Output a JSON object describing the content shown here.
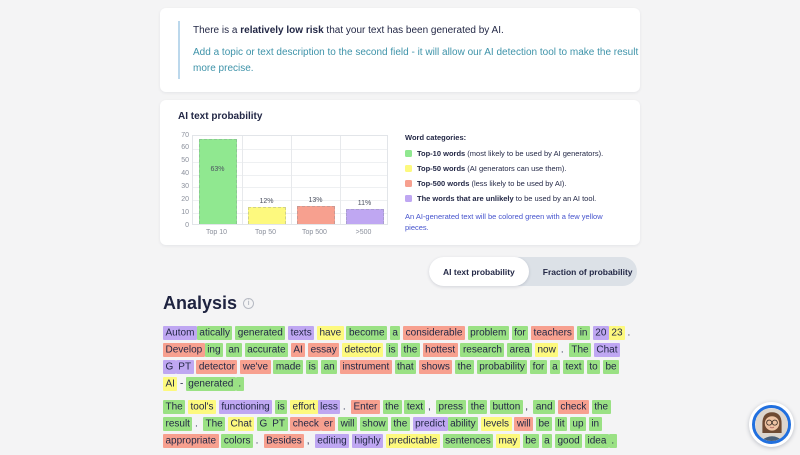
{
  "palette": {
    "green": "#9ae184",
    "yellow": "#fdf97e",
    "red": "#f7a08f",
    "purple": "#bfa7f2",
    "navy": "#232846",
    "teal": "#3e93a9",
    "indigo": "#4553cd"
  },
  "risk_card": {
    "line1_prefix": "There is a ",
    "line1_bold": "relatively low risk",
    "line1_suffix": " that your text has been generated by AI.",
    "line2": "Add a topic or text description to the second field - it will allow our AI detection tool to make the result more precise."
  },
  "chart_card": {
    "title": "AI text probability",
    "legend_heading": "Word categories:",
    "legend_items": [
      {
        "color": "#90e890",
        "bold": "Top-10 words",
        "rest": " (most likely to be used by AI generators)."
      },
      {
        "color": "#fdf97e",
        "bold": "Top-50 words",
        "rest": " (AI generators can use them)."
      },
      {
        "color": "#f7a08f",
        "bold": "Top-500 words",
        "rest": " (less likely to be used by AI)."
      },
      {
        "color": "#bfa7f2",
        "bold": "The words that are unlikely",
        "rest": " to be used by an AI tool."
      }
    ],
    "legend_note": "An AI-generated text will be colored green with a few yellow pieces."
  },
  "chart_data": {
    "type": "bar",
    "title": "AI text probability",
    "categories": [
      "Top 10",
      "Top 50",
      "Top 500",
      ">500"
    ],
    "values": [
      63,
      12,
      13,
      11
    ],
    "bar_labels": [
      "63%",
      "12%",
      "13%",
      "11%"
    ],
    "bar_heights_axis": [
      66,
      13,
      14,
      12
    ],
    "bar_colors": [
      "#90e890",
      "#fdf97e",
      "#f7a08f",
      "#bfa7f2"
    ],
    "ylim": [
      0,
      70
    ],
    "yticks": [
      0,
      10,
      20,
      30,
      40,
      50,
      60,
      70
    ],
    "grid": true,
    "legend_position": "right",
    "xlabel": "",
    "ylabel": ""
  },
  "toggle": {
    "active_label": "AI text probability",
    "inactive_label": "Fraction of probability"
  },
  "analysis": {
    "heading": "Analysis",
    "info_icon": "i",
    "paragraphs": [
      [
        [
          [
            "Autom",
            "p"
          ],
          [
            "atically",
            "g"
          ]
        ],
        [
          [
            "generated",
            "g"
          ]
        ],
        [
          [
            "texts",
            "p"
          ]
        ],
        [
          [
            "have",
            "y"
          ]
        ],
        [
          [
            "become",
            "g"
          ]
        ],
        [
          [
            "a",
            "g"
          ]
        ],
        [
          [
            "considerable",
            "r"
          ]
        ],
        [
          [
            "problem",
            "g"
          ]
        ],
        [
          [
            "for",
            "g"
          ]
        ],
        [
          [
            "teachers",
            "r"
          ]
        ],
        [
          [
            "in",
            "g"
          ]
        ],
        [
          [
            "20",
            "p"
          ],
          [
            "23",
            "y"
          ],
          [
            ".",
            "n"
          ]
        ],
        [
          [
            "Develop",
            "r"
          ],
          [
            "ing",
            "g"
          ]
        ],
        [
          [
            "an",
            "g"
          ]
        ],
        [
          [
            "accurate",
            "g"
          ]
        ],
        [
          [
            "AI",
            "r"
          ]
        ],
        [
          [
            "essay",
            "r"
          ]
        ],
        [
          [
            "detector",
            "y"
          ]
        ],
        [
          [
            "is",
            "g"
          ]
        ],
        [
          [
            "the",
            "g"
          ]
        ],
        [
          [
            "hottest",
            "r"
          ]
        ],
        [
          [
            "research",
            "g"
          ]
        ],
        [
          [
            "area",
            "g"
          ]
        ],
        [
          [
            "now",
            "y"
          ],
          [
            ".",
            "n"
          ]
        ],
        [
          [
            "The",
            "g"
          ]
        ],
        [
          [
            "Chat",
            "p"
          ]
        ],
        [
          [
            "G",
            "p"
          ],
          [
            "PT",
            "p"
          ]
        ],
        [
          [
            "detector",
            "r"
          ]
        ],
        [
          [
            "we've",
            "r"
          ]
        ],
        [
          [
            "made",
            "g"
          ]
        ],
        [
          [
            "is",
            "g"
          ]
        ],
        [
          [
            "an",
            "g"
          ]
        ],
        [
          [
            "instrument",
            "r"
          ]
        ],
        [
          [
            "that",
            "g"
          ]
        ],
        [
          [
            "shows",
            "r"
          ]
        ],
        [
          [
            "the",
            "g"
          ]
        ],
        [
          [
            "probability",
            "g"
          ]
        ],
        [
          [
            "for",
            "g"
          ]
        ],
        [
          [
            "a",
            "g"
          ]
        ],
        [
          [
            "text",
            "g"
          ]
        ],
        [
          [
            "to",
            "g"
          ]
        ],
        [
          [
            "be",
            "g"
          ]
        ],
        [
          [
            "AI",
            "y"
          ],
          [
            "-",
            "n"
          ],
          [
            "generated",
            "g"
          ],
          [
            ".",
            "g"
          ]
        ]
      ],
      [
        [
          [
            "The",
            "g"
          ]
        ],
        [
          [
            "tool's",
            "y"
          ]
        ],
        [
          [
            "functioning",
            "p"
          ]
        ],
        [
          [
            "is",
            "g"
          ]
        ],
        [
          [
            "effort",
            "y"
          ],
          [
            "less",
            "p"
          ],
          [
            ".",
            "n"
          ]
        ],
        [
          [
            "Enter",
            "r"
          ]
        ],
        [
          [
            "the",
            "g"
          ]
        ],
        [
          [
            "text",
            "g"
          ],
          [
            ",",
            "n"
          ]
        ],
        [
          [
            "press",
            "g"
          ]
        ],
        [
          [
            "the",
            "g"
          ]
        ],
        [
          [
            "button",
            "g"
          ],
          [
            ",",
            "n"
          ]
        ],
        [
          [
            "and",
            "g"
          ]
        ],
        [
          [
            "check",
            "r"
          ]
        ],
        [
          [
            "the",
            "g"
          ]
        ],
        [
          [
            "result",
            "g"
          ],
          [
            ".",
            "n"
          ]
        ],
        [
          [
            "The",
            "g"
          ]
        ],
        [
          [
            "Chat",
            "y"
          ]
        ],
        [
          [
            "G",
            "g"
          ],
          [
            "PT",
            "g"
          ]
        ],
        [
          [
            "check",
            "r"
          ],
          [
            "er",
            "r"
          ]
        ],
        [
          [
            "will",
            "g"
          ]
        ],
        [
          [
            "show",
            "g"
          ]
        ],
        [
          [
            "the",
            "g"
          ]
        ],
        [
          [
            "predict",
            "p"
          ],
          [
            "ability",
            "g"
          ]
        ],
        [
          [
            "levels",
            "y"
          ]
        ],
        [
          [
            "will",
            "r"
          ]
        ],
        [
          [
            "be",
            "g"
          ]
        ],
        [
          [
            "lit",
            "g"
          ]
        ],
        [
          [
            "up",
            "g"
          ]
        ],
        [
          [
            "in",
            "g"
          ]
        ],
        [
          [
            "appropriate",
            "r"
          ]
        ],
        [
          [
            "colors",
            "g"
          ],
          [
            ".",
            "n"
          ]
        ],
        [
          [
            "Besides",
            "r"
          ],
          [
            ",",
            "n"
          ]
        ],
        [
          [
            "editing",
            "p"
          ]
        ],
        [
          [
            "highly",
            "p"
          ]
        ],
        [
          [
            "predictable",
            "y"
          ]
        ],
        [
          [
            "sentences",
            "g"
          ]
        ],
        [
          [
            "may",
            "y"
          ]
        ],
        [
          [
            "be",
            "g"
          ]
        ],
        [
          [
            "a",
            "g"
          ]
        ],
        [
          [
            "good",
            "g"
          ]
        ],
        [
          [
            "idea",
            "g"
          ],
          [
            ".",
            "g"
          ]
        ]
      ]
    ]
  }
}
